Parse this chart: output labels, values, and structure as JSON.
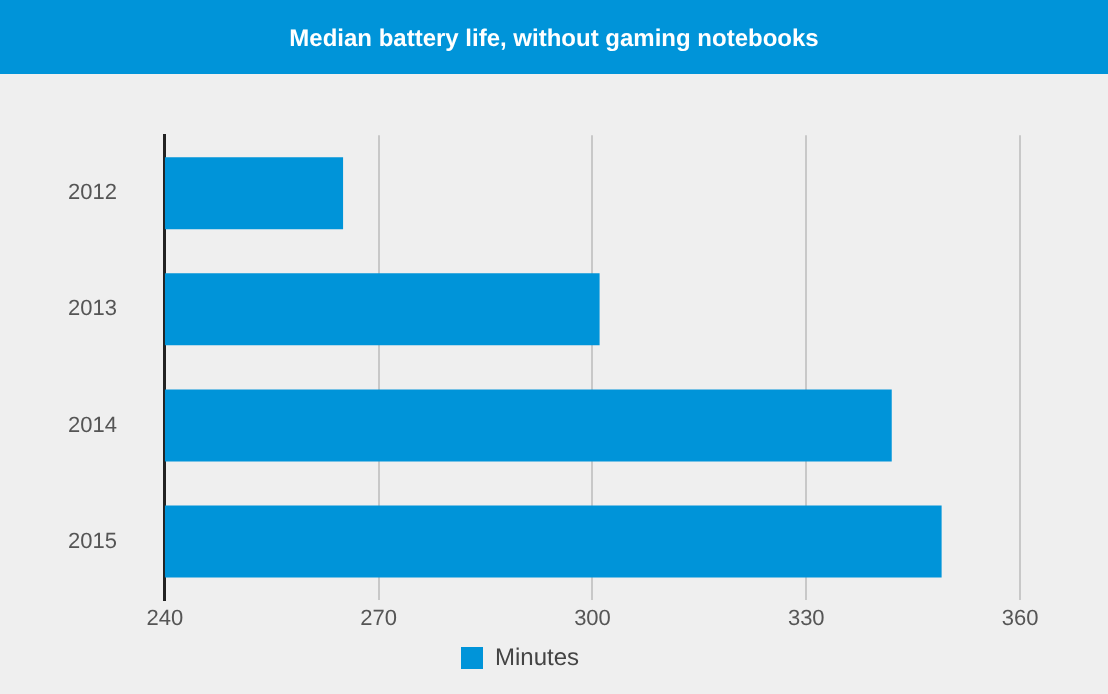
{
  "chart_data": {
    "type": "bar",
    "orientation": "horizontal",
    "title": "Median battery life, without gaming notebooks",
    "categories": [
      "2012",
      "2013",
      "2014",
      "2015"
    ],
    "series": [
      {
        "name": "Minutes",
        "color": "#0094d9",
        "values": [
          265,
          301,
          342,
          349
        ]
      }
    ],
    "xlim": [
      240,
      360
    ],
    "xticks": [
      240,
      270,
      300,
      330,
      360
    ],
    "grid": "x",
    "legend": "bottom"
  }
}
